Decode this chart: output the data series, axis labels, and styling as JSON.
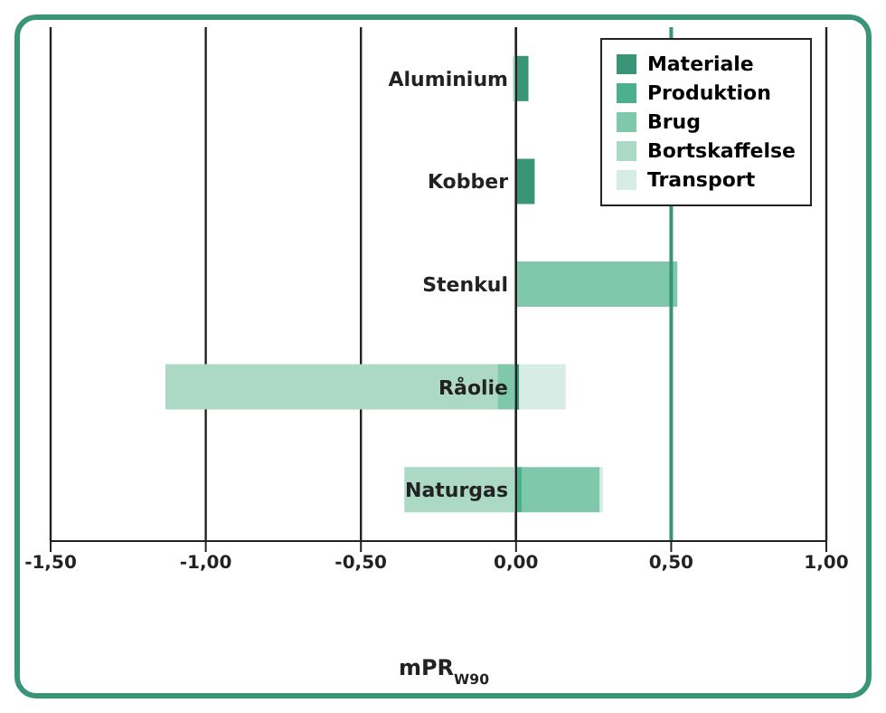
{
  "chart_data": {
    "type": "bar",
    "orientation": "horizontal",
    "stacked": true,
    "xlabel": "mPR$_{W90}$",
    "categories": [
      "Aluminium",
      "Kobber",
      "Stenkul",
      "Råolie",
      "Naturgas"
    ],
    "series": [
      {
        "name": "Materiale",
        "color": "#3a9478",
        "values": [
          0.04,
          0.06,
          null,
          0.01,
          null
        ]
      },
      {
        "name": "Produktion",
        "color": "#4cb08e",
        "values": [
          null,
          null,
          null,
          null,
          0.02
        ]
      },
      {
        "name": "Brug",
        "color": "#80c8ac",
        "values": [
          null,
          null,
          0.52,
          -0.06,
          0.25
        ]
      },
      {
        "name": "Bortskaffelse",
        "color": "#acd8c6",
        "values": [
          -0.01,
          null,
          null,
          -1.07,
          -0.36
        ]
      },
      {
        "name": "Transport",
        "color": "#d6ece4",
        "values": [
          null,
          null,
          null,
          0.15,
          0.01
        ]
      }
    ],
    "xlim": [
      -1.5,
      1.0
    ],
    "xticks": [
      {
        "value": -1.5,
        "label": "-1,50"
      },
      {
        "value": -1.0,
        "label": "-1,00"
      },
      {
        "value": -0.5,
        "label": "-0,50"
      },
      {
        "value": 0,
        "label": "0,00"
      },
      {
        "value": 0.5,
        "label": "0,50"
      },
      {
        "value": 1.0,
        "label": "1,00"
      }
    ],
    "grid": "x",
    "ref_lines": [
      {
        "axis": "x",
        "value": 0.5,
        "color": "#3a9478"
      }
    ],
    "legend": "top right"
  }
}
